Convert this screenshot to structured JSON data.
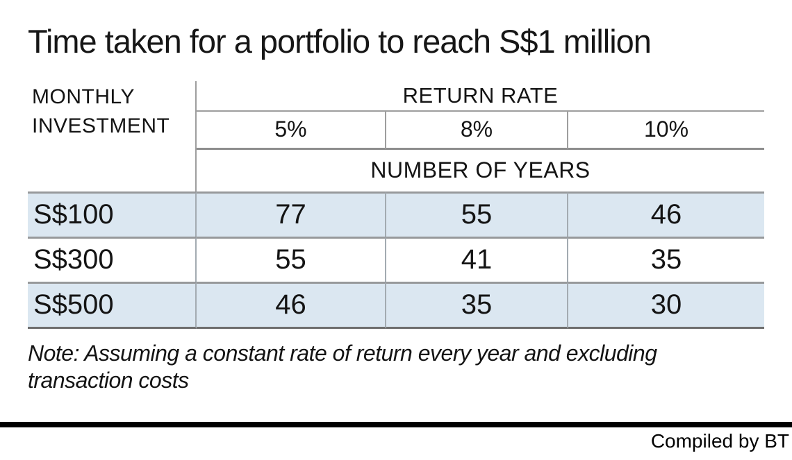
{
  "chart_data": {
    "type": "table",
    "title": "Time taken for a portfolio to reach S$1 million",
    "row_header": "MONTHLY INVESTMENT",
    "column_group": "RETURN RATE",
    "columns": [
      "5%",
      "8%",
      "10%"
    ],
    "unit": "NUMBER OF YEARS",
    "rows": [
      {
        "label": "S$100",
        "values": [
          77,
          55,
          46
        ]
      },
      {
        "label": "S$300",
        "values": [
          55,
          41,
          35
        ]
      },
      {
        "label": "S$500",
        "values": [
          46,
          35,
          30
        ]
      }
    ],
    "note": "Note: Assuming a constant rate of return every year and excluding transaction costs",
    "source": "Compiled by BT",
    "layout": {
      "highlight_row_color": "#dbe7f1",
      "grid_line_color": "#9e9e9e",
      "footer_bar_color": "#000000",
      "highlighted_rows": [
        0,
        2
      ]
    }
  }
}
